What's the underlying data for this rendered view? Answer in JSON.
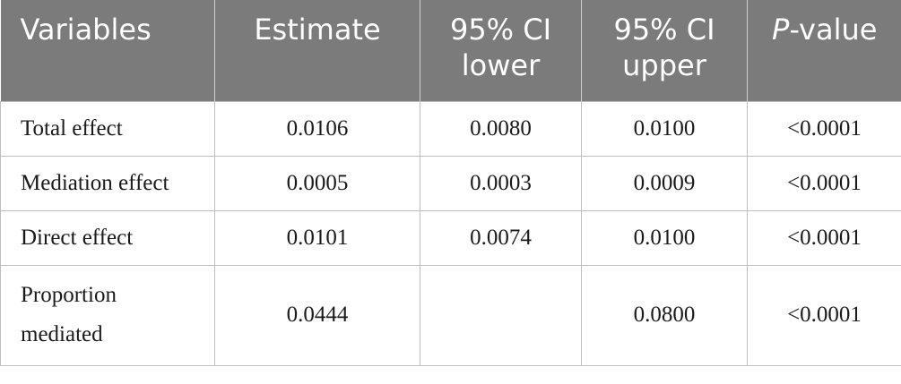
{
  "table": {
    "headers": [
      {
        "text": "Variables"
      },
      {
        "text": "Estimate"
      },
      {
        "text": "95% CI lower"
      },
      {
        "text": "95% CI upper"
      },
      {
        "text_italic": "P",
        "text_rest": "-value"
      }
    ],
    "header_lines": {
      "ci_lower_1": "95% CI",
      "ci_lower_2": "lower",
      "ci_upper_1": "95% CI",
      "ci_upper_2": "upper"
    },
    "rows": [
      {
        "variable": "Total effect",
        "estimate": "0.0106",
        "ci_lower": "0.0080",
        "ci_upper": "0.0100",
        "p_value": "<0.0001"
      },
      {
        "variable": "Mediation effect",
        "estimate": "0.0005",
        "ci_lower": "0.0003",
        "ci_upper": "0.0009",
        "p_value": "<0.0001"
      },
      {
        "variable": "Direct effect",
        "estimate": "0.0101",
        "ci_lower": "0.0074",
        "ci_upper": "0.0100",
        "p_value": "<0.0001"
      },
      {
        "variable_line1": "Proportion",
        "variable_line2": "mediated",
        "estimate": "0.0444",
        "ci_lower": "",
        "ci_upper": "0.0800",
        "p_value": "<0.0001"
      }
    ]
  },
  "colors": {
    "header_bg": "#7a7b7a",
    "header_text": "#ffffff",
    "border": "#bdbdbd"
  }
}
